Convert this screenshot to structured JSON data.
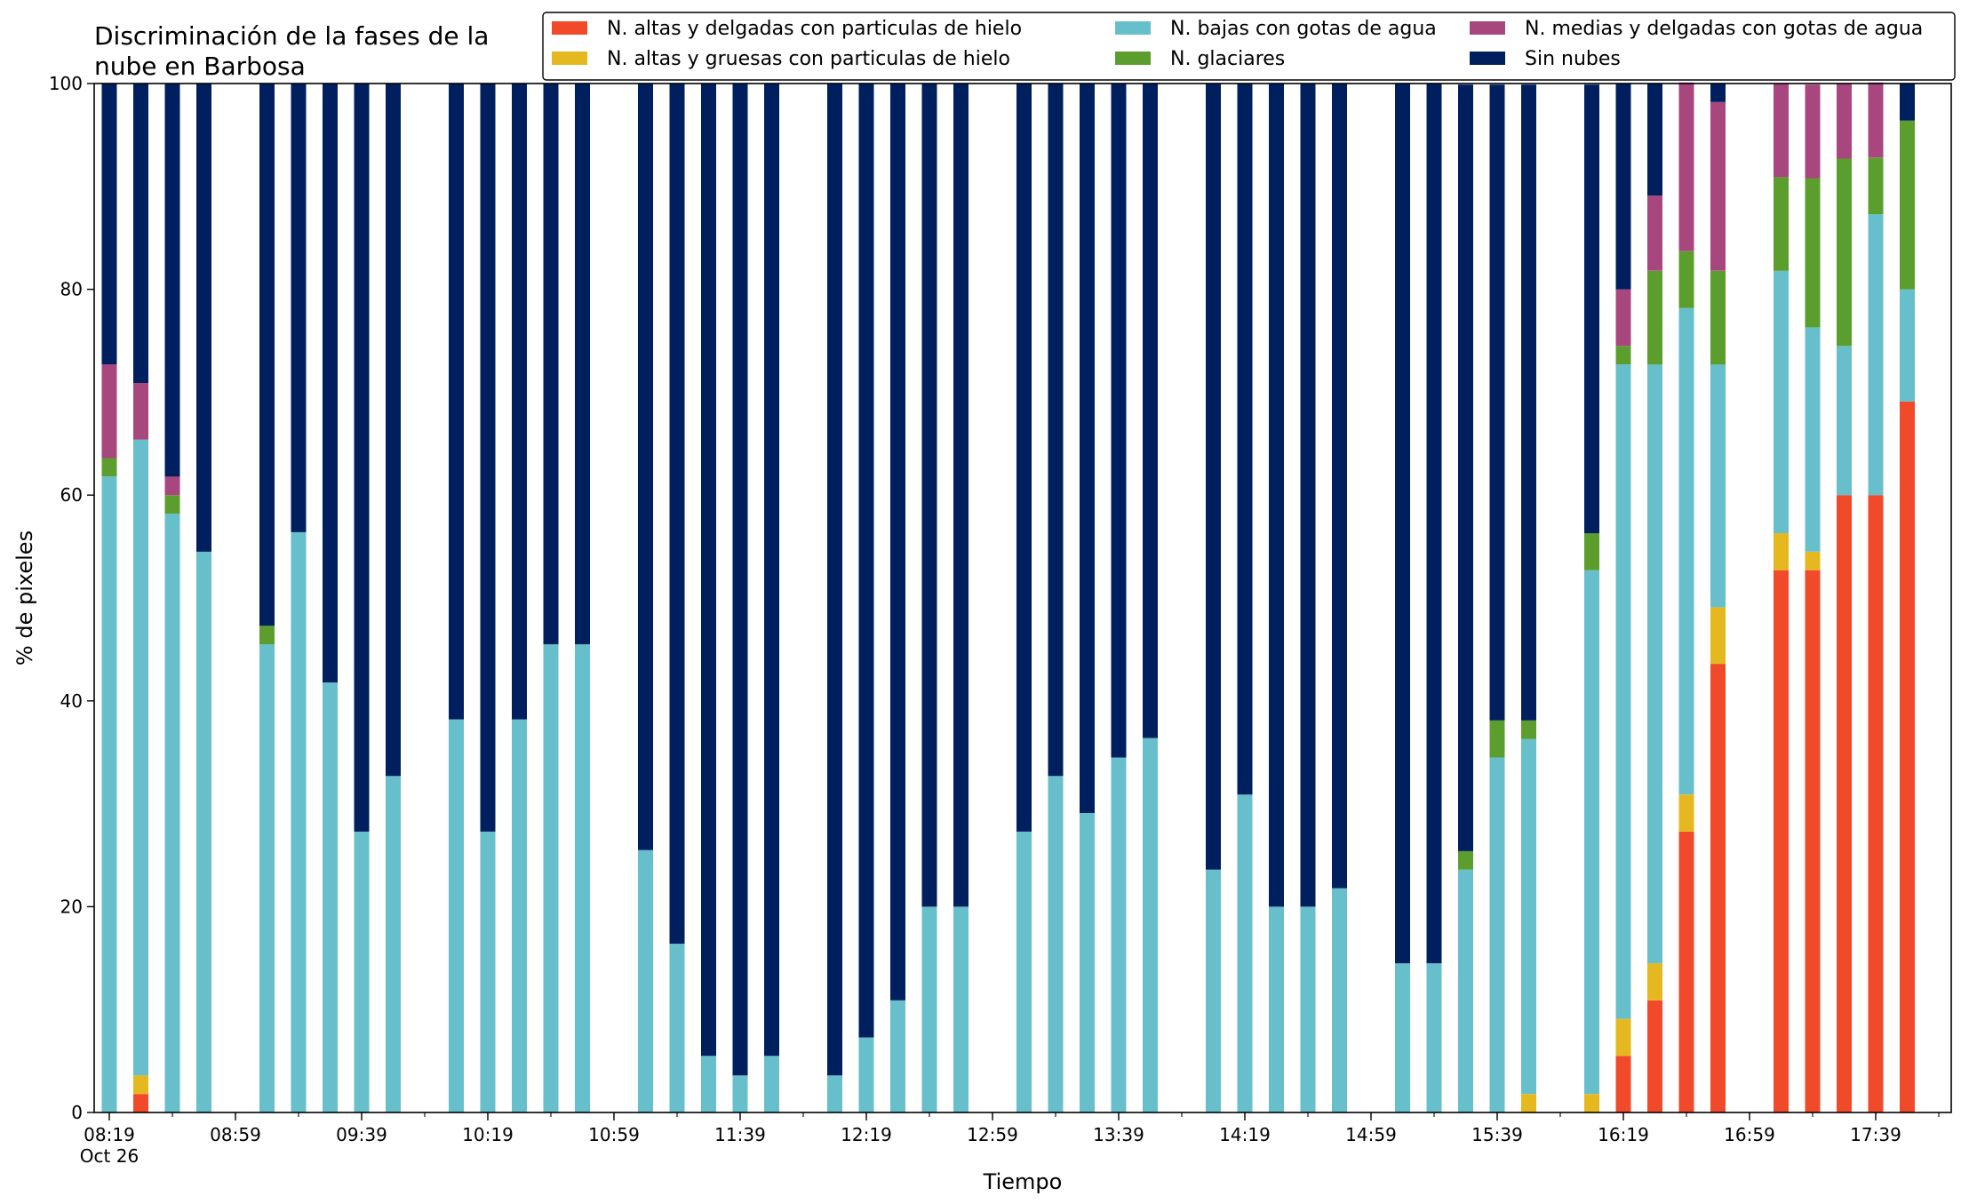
{
  "chart_data": {
    "type": "bar",
    "stacked": true,
    "title": [
      "Discriminación de la fases de la",
      "nube en Barbosa"
    ],
    "xlabel": "Tiempo",
    "ylabel": "% de pixeles",
    "ylim": [
      0,
      100
    ],
    "yticks": [
      0,
      20,
      40,
      60,
      80,
      100
    ],
    "xticks": [
      {
        "slot": 0,
        "label": "08:19",
        "label2": "Oct 26"
      },
      {
        "slot": 4,
        "label": "08:59"
      },
      {
        "slot": 8,
        "label": "09:39"
      },
      {
        "slot": 12,
        "label": "10:19"
      },
      {
        "slot": 16,
        "label": "10:59"
      },
      {
        "slot": 20,
        "label": "11:39"
      },
      {
        "slot": 24,
        "label": "12:19"
      },
      {
        "slot": 28,
        "label": "12:59"
      },
      {
        "slot": 32,
        "label": "13:39"
      },
      {
        "slot": 36,
        "label": "14:19"
      },
      {
        "slot": 40,
        "label": "14:59"
      },
      {
        "slot": 44,
        "label": "15:39"
      },
      {
        "slot": 48,
        "label": "16:19"
      },
      {
        "slot": 52,
        "label": "16:59"
      },
      {
        "slot": 56,
        "label": "17:39"
      }
    ],
    "time_start": "08:19",
    "slot_minutes": 10,
    "slot_count": 59,
    "grid": false,
    "legend_position": "top-right",
    "series": [
      {
        "key": "altas_delgadas",
        "name": "N. altas y delgadas con particulas de hielo",
        "color": "#f04a2b"
      },
      {
        "key": "altas_gruesas",
        "name": "N. altas y gruesas con particulas de hielo",
        "color": "#e6b81f"
      },
      {
        "key": "bajas",
        "name": "N. bajas con gotas de agua",
        "color": "#67bfcb"
      },
      {
        "key": "glaciares",
        "name": "N. glaciares",
        "color": "#5c9e2e"
      },
      {
        "key": "medias",
        "name": "N. medias y delgadas con gotas de agua",
        "color": "#a8467e"
      },
      {
        "key": "sin_nubes",
        "name": "Sin nubes",
        "color": "#001f5e"
      }
    ],
    "bars": [
      {
        "slot": 0,
        "altas_delgadas": 0,
        "altas_gruesas": 0,
        "bajas": 61.8,
        "glaciares": 1.8,
        "medias": 9.1,
        "sin_nubes": 27.3
      },
      {
        "slot": 1,
        "altas_delgadas": 1.8,
        "altas_gruesas": 1.8,
        "bajas": 61.8,
        "glaciares": 0,
        "medias": 5.5,
        "sin_nubes": 29.1
      },
      {
        "slot": 2,
        "altas_delgadas": 0,
        "altas_gruesas": 0,
        "bajas": 58.2,
        "glaciares": 1.8,
        "medias": 1.8,
        "sin_nubes": 38.2
      },
      {
        "slot": 3,
        "altas_delgadas": 0,
        "altas_gruesas": 0,
        "bajas": 54.5,
        "glaciares": 0,
        "medias": 0,
        "sin_nubes": 45.5
      },
      {
        "slot": 5,
        "altas_delgadas": 0,
        "altas_gruesas": 0,
        "bajas": 45.5,
        "glaciares": 1.8,
        "medias": 0,
        "sin_nubes": 52.7
      },
      {
        "slot": 6,
        "altas_delgadas": 0,
        "altas_gruesas": 0,
        "bajas": 56.4,
        "glaciares": 0,
        "medias": 0,
        "sin_nubes": 43.6
      },
      {
        "slot": 7,
        "altas_delgadas": 0,
        "altas_gruesas": 0,
        "bajas": 41.8,
        "glaciares": 0,
        "medias": 0,
        "sin_nubes": 58.2
      },
      {
        "slot": 8,
        "altas_delgadas": 0,
        "altas_gruesas": 0,
        "bajas": 27.3,
        "glaciares": 0,
        "medias": 0,
        "sin_nubes": 72.7
      },
      {
        "slot": 9,
        "altas_delgadas": 0,
        "altas_gruesas": 0,
        "bajas": 32.7,
        "glaciares": 0,
        "medias": 0,
        "sin_nubes": 67.3
      },
      {
        "slot": 11,
        "altas_delgadas": 0,
        "altas_gruesas": 0,
        "bajas": 38.2,
        "glaciares": 0,
        "medias": 0,
        "sin_nubes": 61.8
      },
      {
        "slot": 12,
        "altas_delgadas": 0,
        "altas_gruesas": 0,
        "bajas": 27.3,
        "glaciares": 0,
        "medias": 0,
        "sin_nubes": 72.7
      },
      {
        "slot": 13,
        "altas_delgadas": 0,
        "altas_gruesas": 0,
        "bajas": 38.2,
        "glaciares": 0,
        "medias": 0,
        "sin_nubes": 61.8
      },
      {
        "slot": 14,
        "altas_delgadas": 0,
        "altas_gruesas": 0,
        "bajas": 45.5,
        "glaciares": 0,
        "medias": 0,
        "sin_nubes": 54.5
      },
      {
        "slot": 15,
        "altas_delgadas": 0,
        "altas_gruesas": 0,
        "bajas": 45.5,
        "glaciares": 0,
        "medias": 0,
        "sin_nubes": 54.5
      },
      {
        "slot": 17,
        "altas_delgadas": 0,
        "altas_gruesas": 0,
        "bajas": 25.5,
        "glaciares": 0,
        "medias": 0,
        "sin_nubes": 74.5
      },
      {
        "slot": 18,
        "altas_delgadas": 0,
        "altas_gruesas": 0,
        "bajas": 16.4,
        "glaciares": 0,
        "medias": 0,
        "sin_nubes": 83.6
      },
      {
        "slot": 19,
        "altas_delgadas": 0,
        "altas_gruesas": 0,
        "bajas": 5.5,
        "glaciares": 0,
        "medias": 0,
        "sin_nubes": 94.5
      },
      {
        "slot": 20,
        "altas_delgadas": 0,
        "altas_gruesas": 0,
        "bajas": 3.6,
        "glaciares": 0,
        "medias": 0,
        "sin_nubes": 96.4
      },
      {
        "slot": 21,
        "altas_delgadas": 0,
        "altas_gruesas": 0,
        "bajas": 5.5,
        "glaciares": 0,
        "medias": 0,
        "sin_nubes": 94.5
      },
      {
        "slot": 23,
        "altas_delgadas": 0,
        "altas_gruesas": 0,
        "bajas": 3.6,
        "glaciares": 0,
        "medias": 0,
        "sin_nubes": 96.4
      },
      {
        "slot": 24,
        "altas_delgadas": 0,
        "altas_gruesas": 0,
        "bajas": 7.3,
        "glaciares": 0,
        "medias": 0,
        "sin_nubes": 92.7
      },
      {
        "slot": 25,
        "altas_delgadas": 0,
        "altas_gruesas": 0,
        "bajas": 10.9,
        "glaciares": 0,
        "medias": 0,
        "sin_nubes": 89.1
      },
      {
        "slot": 26,
        "altas_delgadas": 0,
        "altas_gruesas": 0,
        "bajas": 20.0,
        "glaciares": 0,
        "medias": 0,
        "sin_nubes": 80.0
      },
      {
        "slot": 27,
        "altas_delgadas": 0,
        "altas_gruesas": 0,
        "bajas": 20.0,
        "glaciares": 0,
        "medias": 0,
        "sin_nubes": 80.0
      },
      {
        "slot": 29,
        "altas_delgadas": 0,
        "altas_gruesas": 0,
        "bajas": 27.3,
        "glaciares": 0,
        "medias": 0,
        "sin_nubes": 72.7
      },
      {
        "slot": 30,
        "altas_delgadas": 0,
        "altas_gruesas": 0,
        "bajas": 32.7,
        "glaciares": 0,
        "medias": 0,
        "sin_nubes": 67.3
      },
      {
        "slot": 31,
        "altas_delgadas": 0,
        "altas_gruesas": 0,
        "bajas": 29.1,
        "glaciares": 0,
        "medias": 0,
        "sin_nubes": 70.9
      },
      {
        "slot": 32,
        "altas_delgadas": 0,
        "altas_gruesas": 0,
        "bajas": 34.5,
        "glaciares": 0,
        "medias": 0,
        "sin_nubes": 65.5
      },
      {
        "slot": 33,
        "altas_delgadas": 0,
        "altas_gruesas": 0,
        "bajas": 36.4,
        "glaciares": 0,
        "medias": 0,
        "sin_nubes": 63.6
      },
      {
        "slot": 35,
        "altas_delgadas": 0,
        "altas_gruesas": 0,
        "bajas": 23.6,
        "glaciares": 0,
        "medias": 0,
        "sin_nubes": 76.4
      },
      {
        "slot": 36,
        "altas_delgadas": 0,
        "altas_gruesas": 0,
        "bajas": 30.9,
        "glaciares": 0,
        "medias": 0,
        "sin_nubes": 69.1
      },
      {
        "slot": 37,
        "altas_delgadas": 0,
        "altas_gruesas": 0,
        "bajas": 20.0,
        "glaciares": 0,
        "medias": 0,
        "sin_nubes": 80.0
      },
      {
        "slot": 38,
        "altas_delgadas": 0,
        "altas_gruesas": 0,
        "bajas": 20.0,
        "glaciares": 0,
        "medias": 0,
        "sin_nubes": 80.0
      },
      {
        "slot": 39,
        "altas_delgadas": 0,
        "altas_gruesas": 0,
        "bajas": 21.8,
        "glaciares": 0,
        "medias": 0,
        "sin_nubes": 78.2
      },
      {
        "slot": 41,
        "altas_delgadas": 0,
        "altas_gruesas": 0,
        "bajas": 14.5,
        "glaciares": 0,
        "medias": 0,
        "sin_nubes": 85.5
      },
      {
        "slot": 42,
        "altas_delgadas": 0,
        "altas_gruesas": 0,
        "bajas": 14.5,
        "glaciares": 0,
        "medias": 0,
        "sin_nubes": 85.5
      },
      {
        "slot": 43,
        "altas_delgadas": 0,
        "altas_gruesas": 0,
        "bajas": 23.6,
        "glaciares": 1.8,
        "medias": 0,
        "sin_nubes": 74.5
      },
      {
        "slot": 44,
        "altas_delgadas": 0,
        "altas_gruesas": 0,
        "bajas": 34.5,
        "glaciares": 3.6,
        "medias": 0,
        "sin_nubes": 61.8
      },
      {
        "slot": 45,
        "altas_delgadas": 0,
        "altas_gruesas": 1.8,
        "bajas": 34.5,
        "glaciares": 1.8,
        "medias": 0,
        "sin_nubes": 61.8
      },
      {
        "slot": 47,
        "altas_delgadas": 0,
        "altas_gruesas": 1.8,
        "bajas": 50.9,
        "glaciares": 3.6,
        "medias": 0,
        "sin_nubes": 43.6
      },
      {
        "slot": 48,
        "altas_delgadas": 5.5,
        "altas_gruesas": 3.6,
        "bajas": 63.6,
        "glaciares": 1.8,
        "medias": 5.5,
        "sin_nubes": 20.0
      },
      {
        "slot": 49,
        "altas_delgadas": 10.9,
        "altas_gruesas": 3.6,
        "bajas": 58.2,
        "glaciares": 9.1,
        "medias": 7.3,
        "sin_nubes": 10.9
      },
      {
        "slot": 50,
        "altas_delgadas": 27.3,
        "altas_gruesas": 3.6,
        "bajas": 47.3,
        "glaciares": 5.5,
        "medias": 16.4,
        "sin_nubes": 0
      },
      {
        "slot": 51,
        "altas_delgadas": 43.6,
        "altas_gruesas": 5.5,
        "bajas": 23.6,
        "glaciares": 9.1,
        "medias": 16.4,
        "sin_nubes": 1.8
      },
      {
        "slot": 53,
        "altas_delgadas": 52.7,
        "altas_gruesas": 3.6,
        "bajas": 25.5,
        "glaciares": 9.1,
        "medias": 9.1,
        "sin_nubes": 0
      },
      {
        "slot": 54,
        "altas_delgadas": 52.7,
        "altas_gruesas": 1.8,
        "bajas": 21.8,
        "glaciares": 14.5,
        "medias": 9.1,
        "sin_nubes": 0
      },
      {
        "slot": 55,
        "altas_delgadas": 60.0,
        "altas_gruesas": 0,
        "bajas": 14.5,
        "glaciares": 18.2,
        "medias": 7.3,
        "sin_nubes": 0
      },
      {
        "slot": 56,
        "altas_delgadas": 60.0,
        "altas_gruesas": 0,
        "bajas": 27.3,
        "glaciares": 5.5,
        "medias": 7.3,
        "sin_nubes": 0
      },
      {
        "slot": 57,
        "altas_delgadas": 69.1,
        "altas_gruesas": 0,
        "bajas": 10.9,
        "glaciares": 16.4,
        "medias": 0,
        "sin_nubes": 3.6
      }
    ]
  }
}
